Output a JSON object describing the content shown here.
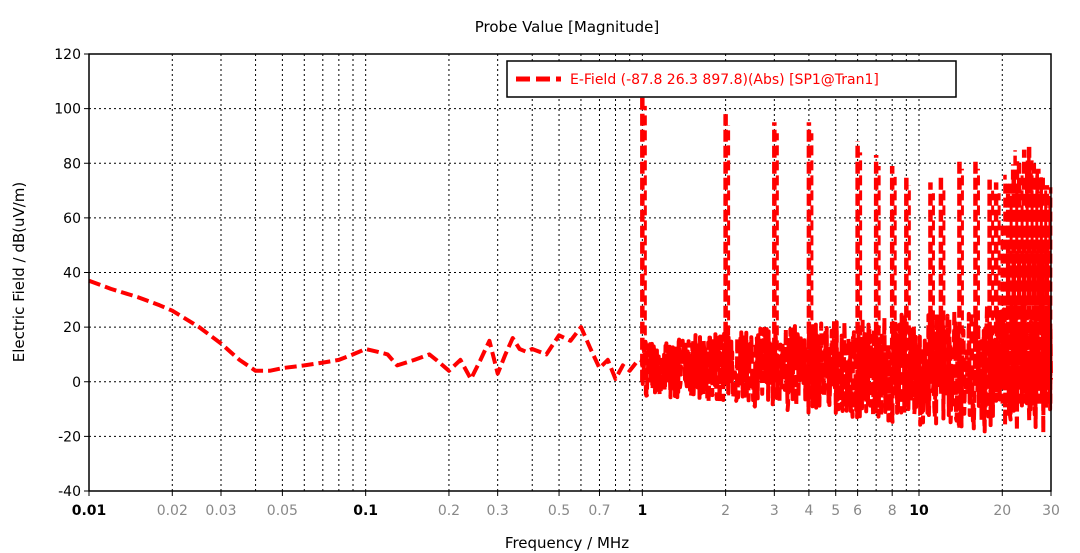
{
  "chart_data": {
    "type": "line",
    "title": "Probe Value [Magnitude]",
    "xlabel": "Frequency / MHz",
    "ylabel": "Electric Field / dB(uV/m)",
    "xscale": "log",
    "xlim": [
      0.01,
      30
    ],
    "ylim": [
      -40,
      120
    ],
    "grid": true,
    "legend_position": "top-right",
    "y_ticks": [
      {
        "value": -40,
        "label": "-40"
      },
      {
        "value": -20,
        "label": "-20"
      },
      {
        "value": 0,
        "label": "0"
      },
      {
        "value": 20,
        "label": "20"
      },
      {
        "value": 40,
        "label": "40"
      },
      {
        "value": 60,
        "label": "60"
      },
      {
        "value": 80,
        "label": "80"
      },
      {
        "value": 100,
        "label": "100"
      },
      {
        "value": 120,
        "label": "120"
      }
    ],
    "x_ticks": [
      {
        "value": 0.01,
        "label": "0.01",
        "major": true
      },
      {
        "value": 0.02,
        "label": "0.02",
        "major": false
      },
      {
        "value": 0.03,
        "label": "0.03",
        "major": false
      },
      {
        "value": 0.05,
        "label": "0.05",
        "major": false
      },
      {
        "value": 0.1,
        "label": "0.1",
        "major": true
      },
      {
        "value": 0.2,
        "label": "0.2",
        "major": false
      },
      {
        "value": 0.3,
        "label": "0.3",
        "major": false
      },
      {
        "value": 0.5,
        "label": "0.5",
        "major": false
      },
      {
        "value": 0.7,
        "label": "0.7",
        "major": false
      },
      {
        "value": 1,
        "label": "1",
        "major": true
      },
      {
        "value": 2,
        "label": "2",
        "major": false
      },
      {
        "value": 3,
        "label": "3",
        "major": false
      },
      {
        "value": 4,
        "label": "4",
        "major": false
      },
      {
        "value": 5,
        "label": "5",
        "major": false
      },
      {
        "value": 6,
        "label": "6",
        "major": false
      },
      {
        "value": 8,
        "label": "8",
        "major": false
      },
      {
        "value": 10,
        "label": "10",
        "major": true
      },
      {
        "value": 20,
        "label": "20",
        "major": false
      },
      {
        "value": 30,
        "label": "30",
        "major": false
      }
    ],
    "x_grid": [
      0.02,
      0.03,
      0.04,
      0.05,
      0.06,
      0.07,
      0.08,
      0.09,
      0.1,
      0.2,
      0.3,
      0.4,
      0.5,
      0.6,
      0.7,
      0.8,
      0.9,
      1,
      2,
      3,
      4,
      5,
      6,
      7,
      8,
      9,
      10,
      20,
      30
    ],
    "series": [
      {
        "name": "E-Field (-87.8 26.3 897.8)(Abs) [SP1@Tran1]",
        "color": "#ff0000",
        "style": "dashed",
        "baseline": {
          "x": [
            0.01,
            0.012,
            0.015,
            0.018,
            0.02,
            0.025,
            0.03,
            0.035,
            0.04,
            0.045,
            0.05,
            0.06,
            0.07,
            0.08,
            0.09,
            0.1,
            0.11,
            0.12,
            0.13,
            0.15,
            0.17,
            0.18,
            0.2,
            0.22,
            0.24,
            0.26,
            0.28,
            0.3,
            0.32,
            0.34,
            0.36,
            0.38,
            0.4,
            0.45,
            0.5,
            0.55,
            0.6,
            0.65,
            0.7,
            0.75,
            0.8,
            0.85,
            0.9,
            0.95,
            0.99
          ],
          "y": [
            37,
            34,
            31,
            28,
            26,
            20,
            14,
            8,
            4,
            4,
            5,
            6,
            7,
            8,
            10,
            12,
            11,
            10,
            6,
            8,
            10,
            8,
            4,
            8,
            1,
            8,
            15,
            3,
            10,
            16,
            12,
            11,
            12,
            10,
            17,
            15,
            20,
            12,
            5,
            8,
            1,
            6,
            4,
            7,
            7
          ]
        },
        "spikes": [
          {
            "x": 1,
            "y": 105
          },
          {
            "x": 2,
            "y": 98
          },
          {
            "x": 3,
            "y": 95
          },
          {
            "x": 4,
            "y": 95
          },
          {
            "x": 6,
            "y": 88
          },
          {
            "x": 7,
            "y": 83
          },
          {
            "x": 8,
            "y": 79
          },
          {
            "x": 9,
            "y": 76
          },
          {
            "x": 11,
            "y": 73
          },
          {
            "x": 12,
            "y": 75
          },
          {
            "x": 14,
            "y": 82
          },
          {
            "x": 16,
            "y": 82
          },
          {
            "x": 18,
            "y": 74
          },
          {
            "x": 19,
            "y": 73
          },
          {
            "x": 21,
            "y": 72
          },
          {
            "x": 22,
            "y": 76
          },
          {
            "x": 23,
            "y": 80
          },
          {
            "x": 24,
            "y": 85
          },
          {
            "x": 25,
            "y": 86
          },
          {
            "x": 26,
            "y": 80
          },
          {
            "x": 27,
            "y": 78
          },
          {
            "x": 28,
            "y": 75
          },
          {
            "x": 29,
            "y": 72
          }
        ],
        "noise_band": [
          -24,
          24
        ]
      }
    ]
  }
}
